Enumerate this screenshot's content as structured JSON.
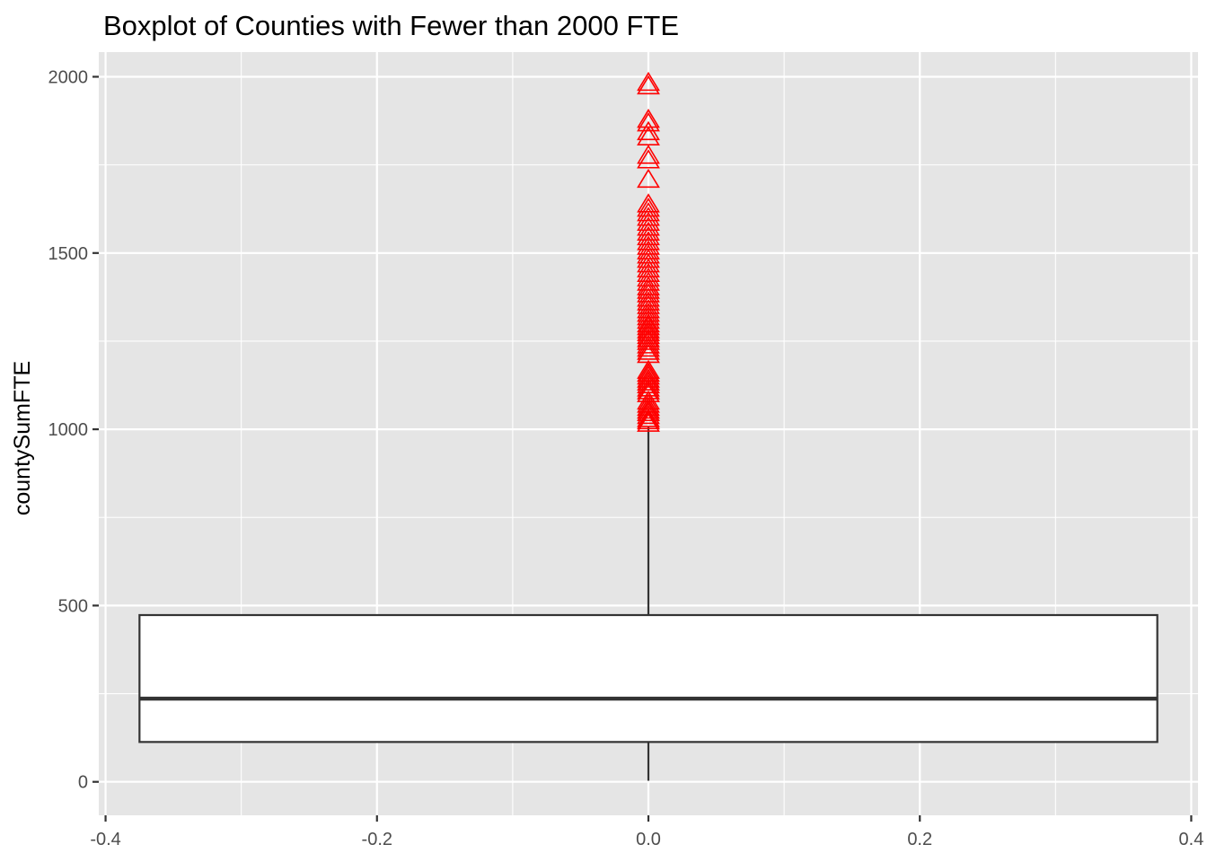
{
  "chart_data": {
    "type": "boxplot",
    "title": "Boxplot of Counties with Fewer than 2000 FTE",
    "xlabel": "",
    "ylabel": "countySumFTE",
    "xlim": [
      -0.405,
      0.405
    ],
    "ylim": [
      -95,
      2070
    ],
    "x_ticks": [
      -0.4,
      -0.2,
      0.0,
      0.2,
      0.4
    ],
    "x_tick_labels": [
      "-0.4",
      "-0.2",
      "0.0",
      "0.2",
      "0.4"
    ],
    "y_ticks": [
      0,
      500,
      1000,
      1500,
      2000
    ],
    "y_tick_labels": [
      "0",
      "500",
      "1000",
      "1500",
      "2000"
    ],
    "x_minor": [
      -0.3,
      -0.1,
      0.1,
      0.3
    ],
    "y_minor": [
      250,
      750,
      1250,
      1750
    ],
    "grid": true,
    "box": {
      "x": 0,
      "xmin": -0.375,
      "xmax": 0.375,
      "whisker_low": 3,
      "q1": 113,
      "median": 236,
      "q3": 473,
      "whisker_high": 1008
    },
    "outliers": [
      1018,
      1025,
      1031,
      1040,
      1048,
      1055,
      1063,
      1072,
      1081,
      1102,
      1110,
      1118,
      1127,
      1135,
      1143,
      1152,
      1160,
      1168,
      1213,
      1222,
      1231,
      1240,
      1250,
      1258,
      1267,
      1275,
      1283,
      1292,
      1300,
      1310,
      1320,
      1330,
      1340,
      1352,
      1362,
      1373,
      1385,
      1395,
      1405,
      1418,
      1430,
      1443,
      1456,
      1470,
      1483,
      1495,
      1507,
      1520,
      1533,
      1547,
      1560,
      1574,
      1588,
      1602,
      1615,
      1628,
      1640,
      1710,
      1765,
      1778,
      1830,
      1845,
      1870,
      1880,
      1975,
      1985
    ],
    "colors": {
      "panel": "#e5e5e5",
      "grid": "#ffffff",
      "box_fill": "#ffffff",
      "box_line": "#333333",
      "outlier": "#ff0000",
      "tick_text": "#4d4d4d"
    }
  }
}
